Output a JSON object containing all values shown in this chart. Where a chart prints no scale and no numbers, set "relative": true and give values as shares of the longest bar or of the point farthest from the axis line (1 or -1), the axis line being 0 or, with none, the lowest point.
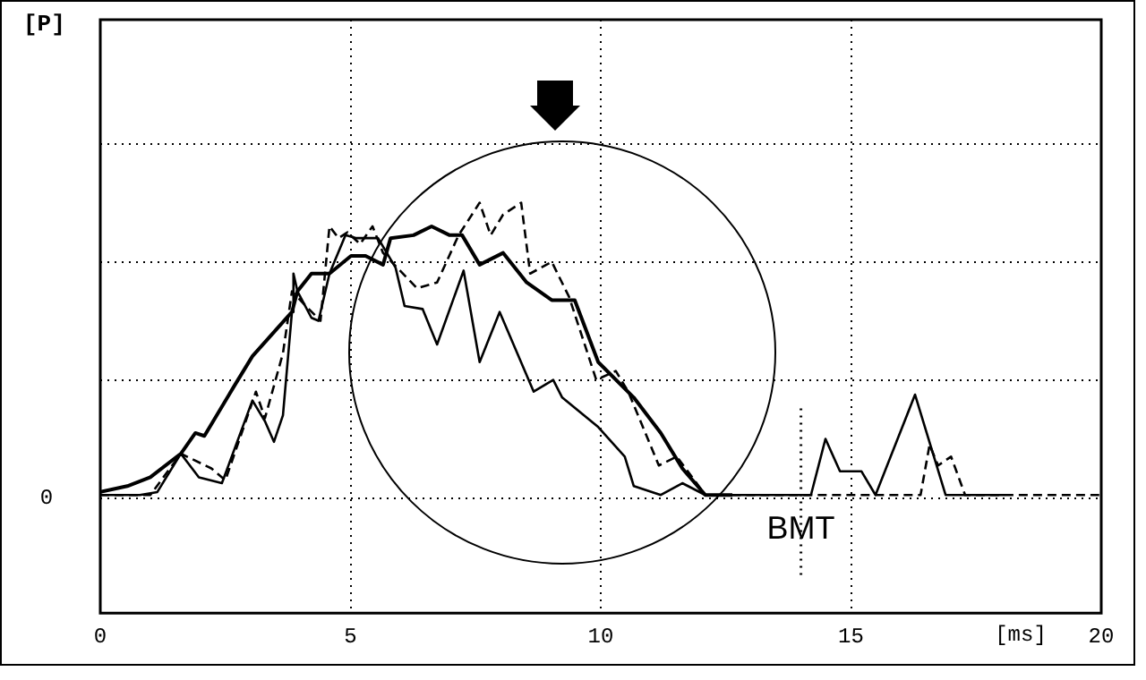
{
  "chart_data": {
    "type": "line",
    "relative": true,
    "xlabel": "[ms]",
    "xlim": [
      0,
      20
    ],
    "xticks": [
      0,
      5,
      10,
      15,
      20
    ],
    "grid": true,
    "legend": false,
    "marker": "none",
    "annotations": [
      "[P]",
      "0"
    ],
    "ref_lines": [
      {
        "axis": "x",
        "value": 14,
        "label": "BMT",
        "color": "#000000",
        "line_style": "dotted"
      }
    ],
    "series": [
      {
        "color": "#000000",
        "line_style": "solid",
        "x": [
          0,
          0.54,
          1.0,
          1.61,
          1.9,
          2.08,
          2.68,
          3.04,
          3.83,
          3.94,
          4.22,
          4.58,
          5.01,
          5.3,
          5.65,
          5.8,
          6.26,
          6.62,
          6.98,
          7.23,
          7.58,
          8.05,
          8.52,
          9.02,
          9.48,
          9.95,
          10.66,
          11.2,
          11.63,
          12.09,
          12.63
        ],
        "values": [
          0.02,
          0.04,
          0.07,
          0.15,
          0.22,
          0.21,
          0.38,
          0.48,
          0.63,
          0.7,
          0.76,
          0.76,
          0.82,
          0.82,
          0.79,
          0.88,
          0.89,
          0.92,
          0.89,
          0.89,
          0.79,
          0.83,
          0.73,
          0.67,
          0.67,
          0.46,
          0.34,
          0.22,
          0.1,
          0.01,
          0.01
        ]
      },
      {
        "color": "#000000",
        "line_style": "solid",
        "x": [
          0,
          0.79,
          1.14,
          1.61,
          1.97,
          2.43,
          3.04,
          3.29,
          3.47,
          3.65,
          3.83,
          3.86,
          3.94,
          4.22,
          4.36,
          4.58,
          4.9,
          5.12,
          5.55,
          5.9,
          6.08,
          6.44,
          6.73,
          7.26,
          7.58,
          7.98,
          8.66,
          9.05,
          9.23,
          9.95,
          10.48,
          10.66,
          11.2,
          11.63,
          12.09,
          14.2,
          14.49,
          14.78,
          15.21,
          15.49,
          16.28,
          16.89,
          18.07
        ],
        "values": [
          0.01,
          0.01,
          0.02,
          0.15,
          0.07,
          0.05,
          0.33,
          0.26,
          0.19,
          0.28,
          0.63,
          0.76,
          0.7,
          0.61,
          0.6,
          0.76,
          0.89,
          0.88,
          0.88,
          0.78,
          0.65,
          0.64,
          0.52,
          0.77,
          0.46,
          0.63,
          0.36,
          0.4,
          0.34,
          0.24,
          0.14,
          0.04,
          0.01,
          0.05,
          0.01,
          0.01,
          0.2,
          0.09,
          0.09,
          0.01,
          0.35,
          0.01,
          0.01
        ]
      },
      {
        "color": "#000000",
        "line_style": "dashed",
        "x": [
          0,
          1.0,
          1.61,
          2.22,
          2.5,
          3.11,
          3.29,
          3.65,
          3.83,
          4.11,
          4.4,
          4.58,
          4.76,
          4.94,
          5.19,
          5.44,
          5.65,
          6.33,
          6.73,
          7.16,
          7.58,
          7.8,
          8.05,
          8.41,
          8.59,
          9.02,
          9.37,
          9.91,
          10.3,
          10.55,
          11.16,
          11.52,
          12.09,
          16.39,
          16.57,
          16.74,
          17.0,
          17.28,
          19.96
        ],
        "values": [
          0.01,
          0.01,
          0.15,
          0.1,
          0.06,
          0.36,
          0.27,
          0.49,
          0.7,
          0.65,
          0.6,
          0.92,
          0.88,
          0.9,
          0.86,
          0.92,
          0.83,
          0.71,
          0.73,
          0.89,
          1.0,
          0.89,
          0.96,
          1.0,
          0.76,
          0.8,
          0.68,
          0.4,
          0.43,
          0.36,
          0.11,
          0.14,
          0.01,
          0.01,
          0.18,
          0.11,
          0.14,
          0.01,
          0.01
        ]
      }
    ]
  }
}
